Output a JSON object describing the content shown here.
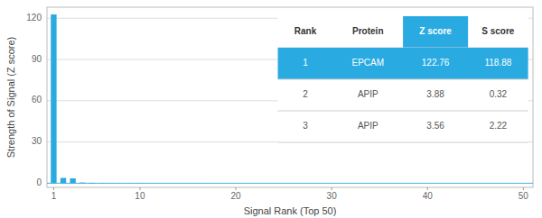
{
  "chart_data": {
    "type": "bar",
    "xlabel": "Signal Rank (Top 50)",
    "ylabel": "Strength of Signal (Z score)",
    "x": [
      1,
      2,
      3,
      4,
      5,
      6,
      7,
      8,
      9,
      10,
      11,
      12,
      13,
      14,
      15,
      16,
      17,
      18,
      19,
      20,
      21,
      22,
      23,
      24,
      25,
      26,
      27,
      28,
      29,
      30,
      31,
      32,
      33,
      34,
      35,
      36,
      37,
      38,
      39,
      40,
      41,
      42,
      43,
      44,
      45,
      46,
      47,
      48,
      49,
      50
    ],
    "values": [
      122.76,
      3.88,
      3.56,
      0.5,
      0.3,
      0.2,
      0.15,
      0.12,
      0.1,
      0.08,
      0.07,
      0.06,
      0.05,
      0.04,
      0.03,
      0.02,
      0.01,
      0.005,
      0.003,
      0.002,
      0.0,
      0.0,
      0.0,
      0.0,
      0.0,
      0.0,
      0.0,
      0.0,
      0.0,
      0.0,
      0.0,
      0.0,
      0.0,
      0.0,
      0.0,
      0.0,
      0.0,
      0.0,
      0.0,
      0.0,
      0.0,
      0.0,
      0.0,
      0.0,
      0.0,
      0.0,
      0.0,
      0.0,
      0.0,
      0.0
    ],
    "color": "#29ABE2",
    "xlim": [
      0.3,
      51
    ],
    "xticks": [
      1,
      10,
      20,
      30,
      40,
      50
    ],
    "ylim": [
      -3,
      128
    ],
    "yticks": [
      0,
      30,
      60,
      90,
      120
    ],
    "grid": true,
    "table": {
      "columns": [
        "Rank",
        "Protein",
        "Z score",
        "S score"
      ],
      "rows": [
        [
          "1",
          "EPCAM",
          "122.76",
          "118.88"
        ],
        [
          "2",
          "APIP",
          "3.88",
          "0.32"
        ],
        [
          "3",
          "APIP",
          "3.56",
          "2.22"
        ]
      ]
    }
  }
}
